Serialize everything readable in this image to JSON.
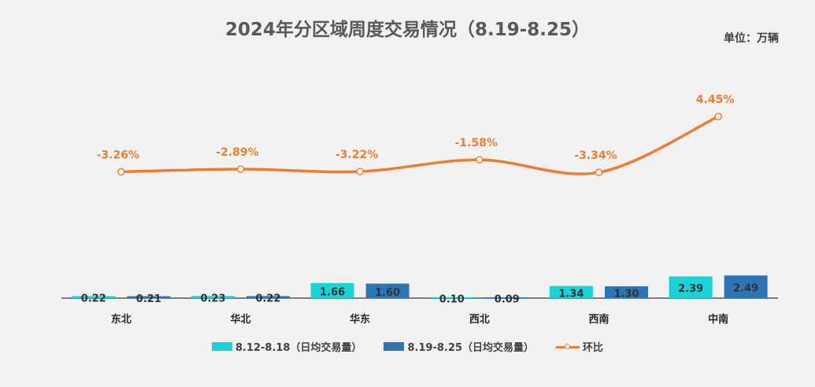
{
  "title": "2024年分区域周度交易情况（8.19-8.25）",
  "unit": "单位：万辆",
  "chart_data": {
    "type": "bar",
    "categories": [
      "东北",
      "华北",
      "华东",
      "西北",
      "西南",
      "中南"
    ],
    "series": [
      {
        "name": "8.12-8.18（日均交易量）",
        "type": "bar",
        "values": [
          0.22,
          0.23,
          1.66,
          0.1,
          1.34,
          2.39
        ],
        "color": "#19d3d6"
      },
      {
        "name": "8.19-8.25（日均交易量）",
        "type": "bar",
        "values": [
          0.21,
          0.22,
          1.6,
          0.09,
          1.3,
          2.49
        ],
        "color": "#2e75b6"
      },
      {
        "name": "环比",
        "type": "line",
        "values": [
          -3.26,
          -2.89,
          -3.22,
          -1.58,
          -3.34,
          4.45
        ],
        "labels": [
          "-3.26%",
          "-2.89%",
          "-3.22%",
          "-1.58%",
          "-3.34%",
          "4.45%"
        ],
        "color": "#ed7d31"
      }
    ],
    "legend_position": "bottom",
    "grid": false
  }
}
